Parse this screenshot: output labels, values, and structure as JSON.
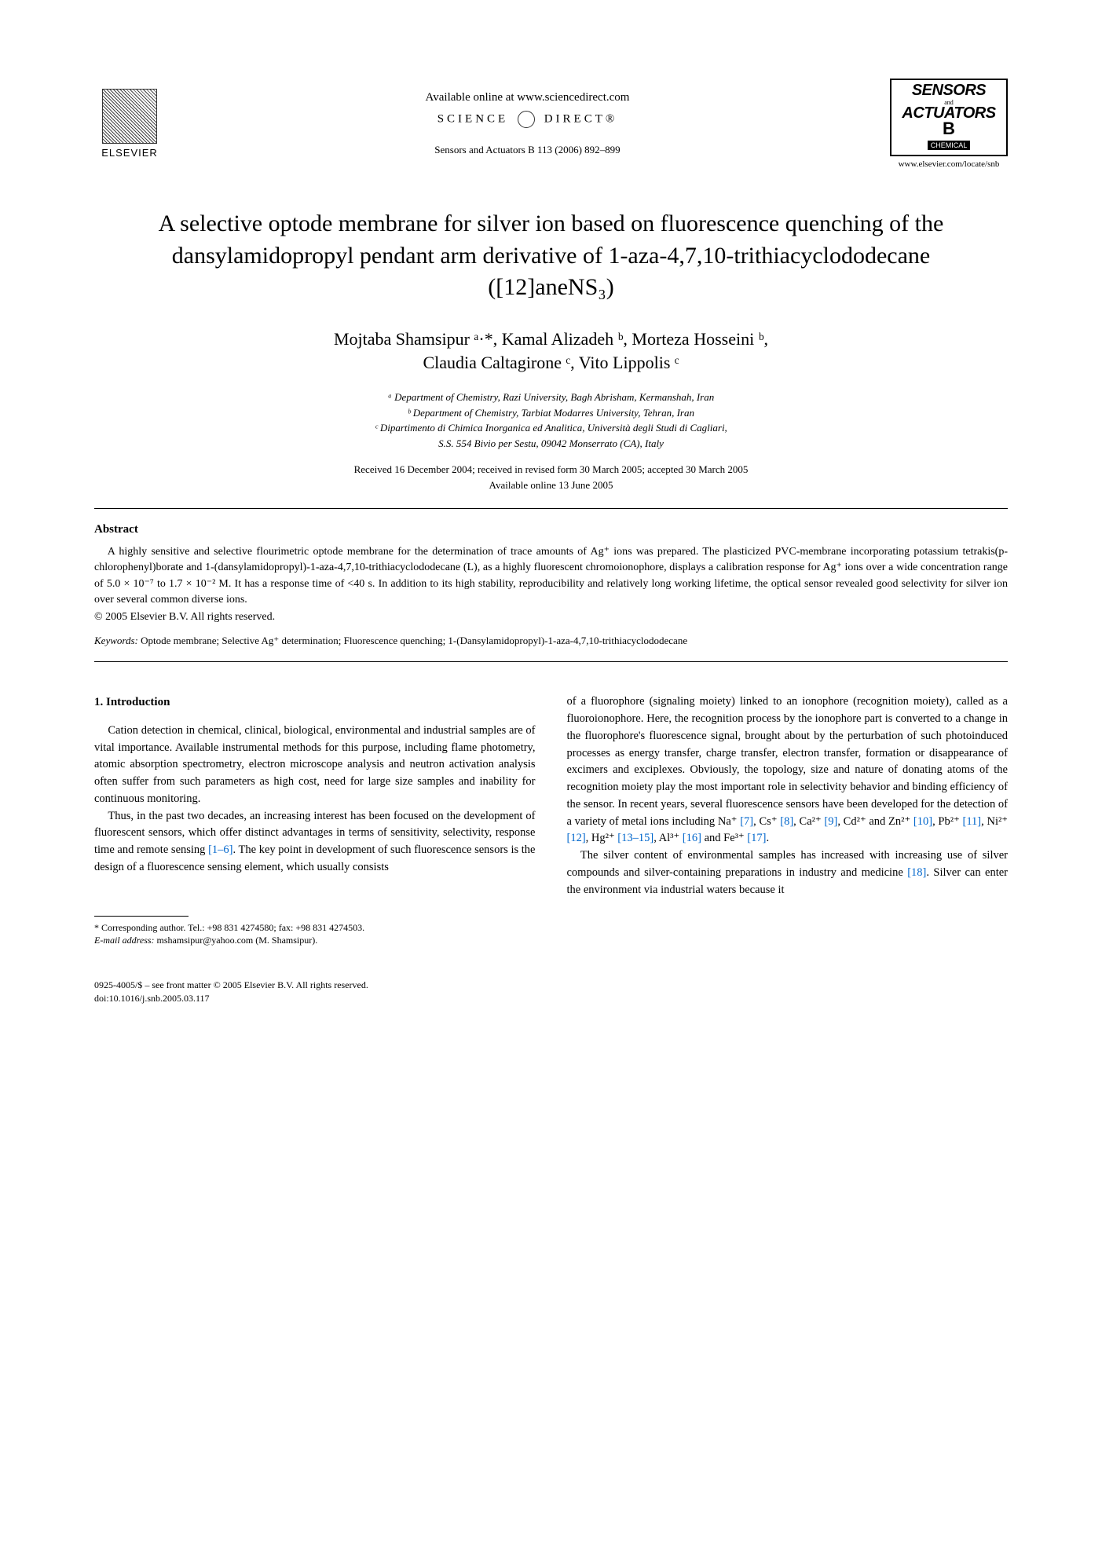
{
  "header": {
    "elsevier": "ELSEVIER",
    "available_online": "Available online at www.sciencedirect.com",
    "sciencedirect_left": "SCIENCE",
    "sciencedirect_right": "DIRECT®",
    "journal_ref": "Sensors and Actuators B 113 (2006) 892–899",
    "journal_logo_l1": "SENSORS",
    "journal_logo_and": "and",
    "journal_logo_l2": "ACTUATORS",
    "journal_logo_b": "B",
    "journal_logo_chem": "CHEMICAL",
    "journal_url": "www.elsevier.com/locate/snb"
  },
  "title": "A selective optode membrane for silver ion based on fluorescence quenching of the dansylamidopropyl pendant arm derivative of 1-aza-4,7,10-trithiacyclododecane ([12]aneNS₃)",
  "authors_line1": "Mojtaba Shamsipur ᵃ·*, Kamal Alizadeh ᵇ, Morteza Hosseini ᵇ,",
  "authors_line2": "Claudia Caltagirone ᶜ, Vito Lippolis ᶜ",
  "affiliations": {
    "a": "ᵃ Department of Chemistry, Razi University, Bagh Abrisham, Kermanshah, Iran",
    "b": "ᵇ Department of Chemistry, Tarbiat Modarres University, Tehran, Iran",
    "c": "ᶜ Dipartimento di Chimica Inorganica ed Analitica, Università degli Studi di Cagliari,",
    "c2": "S.S. 554 Bivio per Sestu, 09042 Monserrato (CA), Italy"
  },
  "dates": {
    "received": "Received 16 December 2004; received in revised form 30 March 2005; accepted 30 March 2005",
    "available": "Available online 13 June 2005"
  },
  "abstract": {
    "heading": "Abstract",
    "text": "A highly sensitive and selective flourimetric optode membrane for the determination of trace amounts of Ag⁺ ions was prepared. The plasticized PVC-membrane incorporating potassium tetrakis(p-chlorophenyl)borate and 1-(dansylamidopropyl)-1-aza-4,7,10-trithiacyclododecane (L), as a highly fluorescent chromoionophore, displays a calibration response for Ag⁺ ions over a wide concentration range of 5.0 × 10⁻⁷ to 1.7 × 10⁻² M. It has a response time of <40 s. In addition to its high stability, reproducibility and relatively long working lifetime, the optical sensor revealed good selectivity for silver ion over several common diverse ions.",
    "copyright": "© 2005 Elsevier B.V. All rights reserved."
  },
  "keywords": {
    "label": "Keywords:",
    "text": " Optode membrane; Selective Ag⁺ determination; Fluorescence quenching; 1-(Dansylamidopropyl)-1-aza-4,7,10-trithiacyclododecane"
  },
  "intro": {
    "heading": "1. Introduction",
    "p1": "Cation detection in chemical, clinical, biological, environmental and industrial samples are of vital importance. Available instrumental methods for this purpose, including flame photometry, atomic absorption spectrometry, electron microscope analysis and neutron activation analysis often suffer from such parameters as high cost, need for large size samples and inability for continuous monitoring.",
    "p2_a": "Thus, in the past two decades, an increasing interest has been focused on the development of fluorescent sensors, which offer distinct advantages in terms of sensitivity, selectivity, response time and remote sensing ",
    "p2_ref": "[1–6]",
    "p2_b": ". The key point in development of such fluorescence sensors is the design of a fluorescence sensing element, which usually consists",
    "p3_a": "of a fluorophore (signaling moiety) linked to an ionophore (recognition moiety), called as a fluoroionophore. Here, the recognition process by the ionophore part is converted to a change in the fluorophore's fluorescence signal, brought about by the perturbation of such photoinduced processes as energy transfer, charge transfer, electron transfer, formation or disappearance of excimers and exciplexes. Obviously, the topology, size and nature of donating atoms of the recognition moiety play the most important role in selectivity behavior and binding efficiency of the sensor. In recent years, several fluorescence sensors have been developed for the detection of a variety of metal ions including Na⁺ ",
    "r7": "[7]",
    "p3_b": ", Cs⁺ ",
    "r8": "[8]",
    "p3_c": ", Ca²⁺ ",
    "r9": "[9]",
    "p3_d": ", Cd²⁺ and Zn²⁺ ",
    "r10": "[10]",
    "p3_e": ", Pb²⁺ ",
    "r11": "[11]",
    "p3_f": ", Ni²⁺ ",
    "r12": "[12]",
    "p3_g": ", Hg²⁺ ",
    "r13": "[13–15]",
    "p3_h": ", Al³⁺ ",
    "r16": "[16]",
    "p3_i": " and Fe³⁺ ",
    "r17": "[17]",
    "p3_j": ".",
    "p4_a": "The silver content of environmental samples has increased with increasing use of silver compounds and silver-containing preparations in industry and medicine ",
    "r18": "[18]",
    "p4_b": ". Silver can enter the environment via industrial waters because it"
  },
  "footnote": {
    "corr": "* Corresponding author. Tel.: +98 831 4274580; fax: +98 831 4274503.",
    "email_label": "E-mail address:",
    "email": " mshamsipur@yahoo.com (M. Shamsipur)."
  },
  "footer": {
    "line1": "0925-4005/$ – see front matter © 2005 Elsevier B.V. All rights reserved.",
    "line2": "doi:10.1016/j.snb.2005.03.117"
  }
}
